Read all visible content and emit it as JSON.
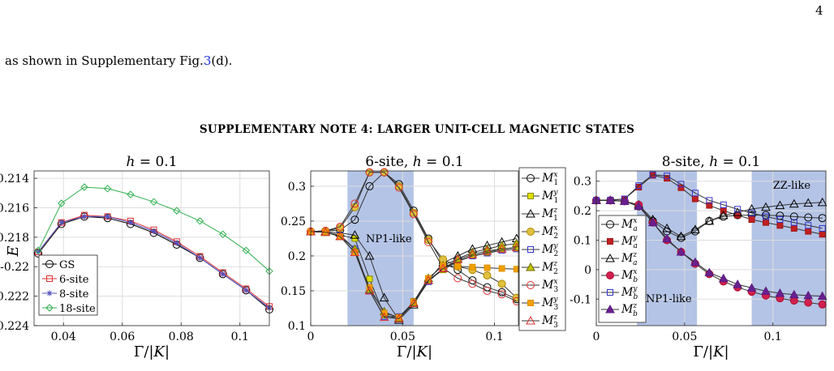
{
  "page_number": "4",
  "body_text_before": "as shown in Supplementary Fig.",
  "body_ref": "3",
  "body_text_after": "(d).",
  "section_heading": "SUPPLEMENTARY NOTE 4: LARGER UNIT-CELL MAGNETIC STATES",
  "colors": {
    "gs": "#000000",
    "six": "#e03030",
    "eight": "#5050c0",
    "eighteen": "#30b050",
    "region": "#b4c4e6"
  },
  "chart_data": [
    {
      "type": "line",
      "title": "h = 0.1",
      "xlabel": "Γ/|K|",
      "ylabel": "E",
      "xlim": [
        0.03,
        0.11
      ],
      "ylim": [
        -0.224,
        -0.2135
      ],
      "xticks": [
        "0.04",
        "0.06",
        "0.08",
        "0.1"
      ],
      "yticks": [
        "-0.214",
        "-0.216",
        "-0.218",
        "-0.22",
        "-0.222",
        "-0.224"
      ],
      "grid": true,
      "legend_position": "bottom-left",
      "x": [
        0.0314,
        0.0393,
        0.0471,
        0.055,
        0.0628,
        0.0707,
        0.0785,
        0.0864,
        0.0942,
        0.1021,
        0.11
      ],
      "series": [
        {
          "name": "GS",
          "marker": "circle",
          "values": [
            -0.2191,
            -0.2171,
            -0.2166,
            -0.2167,
            -0.2171,
            -0.2177,
            -0.2185,
            -0.2194,
            -0.2205,
            -0.2216,
            -0.2229
          ]
        },
        {
          "name": "6-site",
          "marker": "square",
          "values": [
            -0.219,
            -0.217,
            -0.2165,
            -0.2166,
            -0.2169,
            -0.2175,
            -0.2183,
            -0.2193,
            -0.2204,
            -0.2215,
            -0.2227
          ]
        },
        {
          "name": "8-site",
          "marker": "star",
          "values": [
            -0.219,
            -0.217,
            -0.2166,
            -0.2166,
            -0.217,
            -0.2176,
            -0.2184,
            -0.2194,
            -0.2205,
            -0.2216,
            -0.2228
          ]
        },
        {
          "name": "18-site",
          "marker": "diamond",
          "values": [
            -0.2189,
            -0.2157,
            -0.2146,
            -0.2147,
            -0.2151,
            -0.2156,
            -0.2162,
            -0.2169,
            -0.2178,
            -0.2189,
            -0.2203
          ]
        }
      ]
    },
    {
      "type": "line",
      "title": "6-site, h = 0.1",
      "xlabel": "Γ/|K|",
      "xlim": [
        0,
        0.113
      ],
      "ylim": [
        0.1,
        0.322
      ],
      "xticks": [
        "0",
        "0.05",
        "0.1"
      ],
      "yticks": [
        "0.3",
        "0.25",
        "0.2",
        "0.15",
        "0.1"
      ],
      "grid": true,
      "shaded_range": [
        0.02,
        0.056
      ],
      "annotation": "NP1-like",
      "legend_position": "right",
      "x": [
        0,
        0.008,
        0.016,
        0.024,
        0.032,
        0.04,
        0.048,
        0.056,
        0.064,
        0.072,
        0.08,
        0.088,
        0.096,
        0.104,
        0.112
      ],
      "series": [
        {
          "name": "Mx1",
          "marker": "circle",
          "values": [
            0.235,
            0.236,
            0.237,
            0.252,
            0.3,
            0.32,
            0.303,
            0.265,
            0.225,
            0.19,
            0.18,
            0.165,
            0.155,
            0.148,
            0.138
          ]
        },
        {
          "name": "My1",
          "marker": "square-filled",
          "values": [
            0.235,
            0.234,
            0.23,
            0.225,
            0.167,
            0.115,
            0.11,
            0.135,
            0.165,
            0.18,
            0.192,
            0.2,
            0.205,
            0.21,
            0.212
          ]
        },
        {
          "name": "Mz1",
          "marker": "triangle",
          "values": [
            0.235,
            0.235,
            0.233,
            0.23,
            0.2,
            0.14,
            0.108,
            0.13,
            0.165,
            0.19,
            0.2,
            0.21,
            0.215,
            0.22,
            0.225
          ]
        },
        {
          "name": "Mx2",
          "marker": "circle-filled",
          "values": [
            0.235,
            0.236,
            0.24,
            0.27,
            0.32,
            0.32,
            0.3,
            0.262,
            0.223,
            0.195,
            0.185,
            0.18,
            0.172,
            0.16,
            0.14
          ]
        },
        {
          "name": "My2",
          "marker": "square",
          "values": [
            0.235,
            0.234,
            0.23,
            0.21,
            0.15,
            0.113,
            0.113,
            0.132,
            0.163,
            0.182,
            0.193,
            0.2,
            0.204,
            0.208,
            0.21
          ]
        },
        {
          "name": "Mz2",
          "marker": "triangle-filled",
          "values": [
            0.235,
            0.234,
            0.228,
            0.21,
            0.152,
            0.12,
            0.111,
            0.133,
            0.168,
            0.186,
            0.196,
            0.205,
            0.21,
            0.215,
            0.218
          ]
        },
        {
          "name": "Mx3",
          "marker": "circle",
          "values": [
            0.235,
            0.236,
            0.242,
            0.275,
            0.32,
            0.32,
            0.298,
            0.26,
            0.22,
            0.183,
            0.168,
            0.16,
            0.15,
            0.145,
            0.135
          ]
        },
        {
          "name": "My3",
          "marker": "square-filled",
          "values": [
            0.235,
            0.235,
            0.228,
            0.205,
            0.155,
            0.118,
            0.112,
            0.134,
            0.168,
            0.186,
            0.185,
            0.184,
            0.183,
            0.182,
            0.181
          ]
        },
        {
          "name": "Mz3",
          "marker": "triangle",
          "values": [
            0.235,
            0.234,
            0.228,
            0.205,
            0.15,
            0.112,
            0.11,
            0.132,
            0.165,
            0.182,
            0.195,
            0.202,
            0.207,
            0.21,
            0.212
          ]
        }
      ]
    },
    {
      "type": "line",
      "title": "8-site, h = 0.1",
      "xlabel": "Γ/|K|",
      "xlim": [
        0,
        0.13
      ],
      "ylim": [
        -0.19,
        0.335
      ],
      "xticks": [
        "0",
        "0.05",
        "0.1"
      ],
      "yticks": [
        "0.3",
        "0.2",
        "0.1",
        "0",
        "-0.1"
      ],
      "grid": true,
      "shaded_ranges": [
        [
          0.023,
          0.057
        ],
        [
          0.088,
          0.13
        ]
      ],
      "annotations": [
        "NP1-like",
        "ZZ-like"
      ],
      "legend_position": "left",
      "x": [
        0,
        0.008,
        0.016,
        0.024,
        0.032,
        0.04,
        0.048,
        0.056,
        0.064,
        0.072,
        0.08,
        0.088,
        0.096,
        0.104,
        0.112,
        0.12,
        0.128
      ],
      "series": [
        {
          "name": "Mxa",
          "marker": "circle",
          "values": [
            0.235,
            0.235,
            0.233,
            0.215,
            0.165,
            0.13,
            0.108,
            0.13,
            0.165,
            0.18,
            0.185,
            0.185,
            0.185,
            0.183,
            0.18,
            0.177,
            0.175
          ]
        },
        {
          "name": "Mya",
          "marker": "square-filled",
          "values": [
            0.235,
            0.236,
            0.24,
            0.28,
            0.32,
            0.31,
            0.278,
            0.24,
            0.218,
            0.2,
            0.185,
            0.17,
            0.16,
            0.15,
            0.14,
            0.13,
            0.12
          ]
        },
        {
          "name": "Mza",
          "marker": "triangle",
          "values": [
            0.235,
            0.235,
            0.232,
            0.22,
            0.17,
            0.14,
            0.113,
            0.136,
            0.165,
            0.184,
            0.194,
            0.206,
            0.212,
            0.218,
            0.223,
            0.226,
            0.228
          ]
        },
        {
          "name": "Mxb",
          "marker": "circle-filled",
          "values": [
            0.235,
            0.235,
            0.232,
            0.22,
            0.16,
            0.1,
            0.06,
            0.02,
            -0.015,
            -0.04,
            -0.06,
            -0.075,
            -0.088,
            -0.097,
            -0.105,
            -0.112,
            -0.118
          ]
        },
        {
          "name": "Myb",
          "marker": "square",
          "values": [
            0.235,
            0.236,
            0.24,
            0.285,
            0.322,
            0.318,
            0.29,
            0.26,
            0.235,
            0.22,
            0.205,
            0.192,
            0.18,
            0.17,
            0.16,
            0.15,
            0.14
          ]
        },
        {
          "name": "Mzb",
          "marker": "triangle-filled",
          "values": [
            0.235,
            0.235,
            0.232,
            0.215,
            0.16,
            0.105,
            0.06,
            0.025,
            -0.01,
            -0.03,
            -0.05,
            -0.062,
            -0.073,
            -0.08,
            -0.085,
            -0.088,
            -0.09
          ]
        }
      ]
    }
  ]
}
